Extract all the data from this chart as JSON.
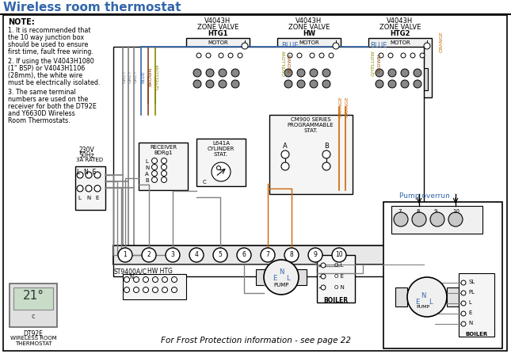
{
  "title": "Wireless room thermostat",
  "bg_color": "#ffffff",
  "title_color": "#cc6600",
  "note_lines": [
    "NOTE:",
    "1. It is recommended that",
    "the 10 way junction box",
    "should be used to ensure",
    "first time, fault free wiring.",
    "2. If using the V4043H1080",
    "(1\" BSP) or V4043H1106",
    "(28mm), the white wire",
    "must be electrically isolated.",
    "3. The same terminal",
    "numbers are used on the",
    "receiver for both the DT92E",
    "and Y6630D Wireless",
    "Room Thermostats."
  ],
  "bottom_text": "For Frost Protection information - see page 22",
  "pump_overrun_label": "Pump overrun",
  "terminal_numbers": [
    "1",
    "2",
    "3",
    "4",
    "5",
    "6",
    "7",
    "8",
    "9",
    "10"
  ],
  "colors": {
    "grey": "#808080",
    "blue": "#4488cc",
    "brown": "#8b4513",
    "gyellow": "#888800",
    "orange": "#cc6600",
    "black": "#000000",
    "white": "#ffffff",
    "ltgrey": "#e8e8e8",
    "diagbg": "#f5f5f5",
    "textblue": "#3366aa"
  }
}
